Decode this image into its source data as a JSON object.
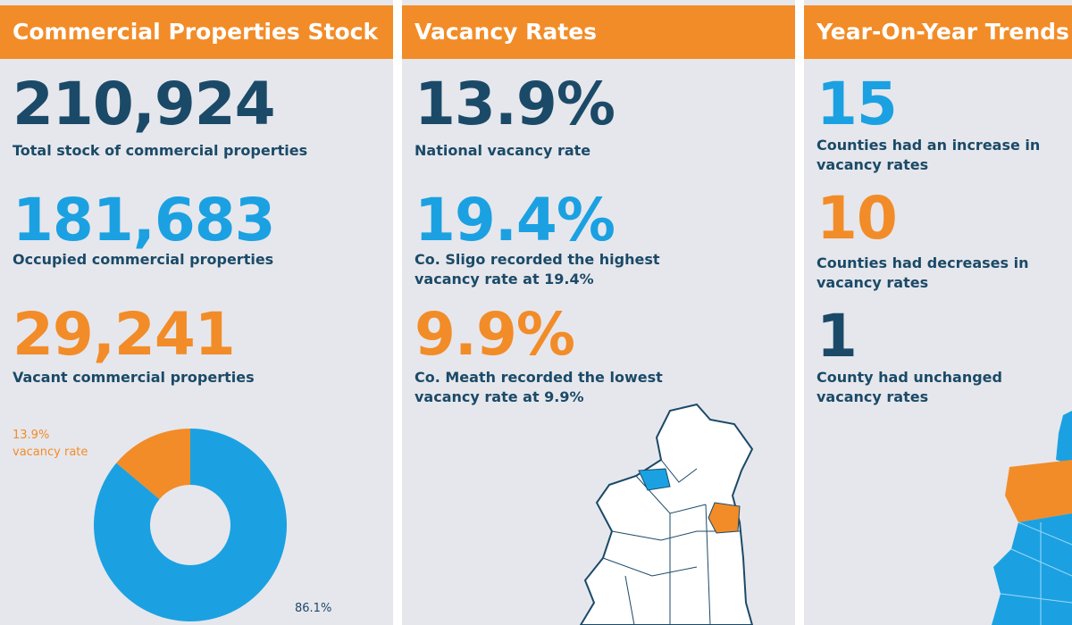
{
  "colors": {
    "orange": "#f28c28",
    "blue": "#1ba1e2",
    "navy": "#1b4a68",
    "background": "#e6e7ec"
  },
  "stock": {
    "title": "Commercial Properties Stock",
    "total": {
      "value": "210,924",
      "label": "Total stock of commercial properties"
    },
    "occupied": {
      "value": "181,683",
      "label": "Occupied commercial properties"
    },
    "vacant": {
      "value": "29,241",
      "label": "Vacant commercial properties"
    }
  },
  "chart_data": {
    "type": "pie",
    "donut": true,
    "slices": [
      {
        "label": "13.9% vacancy rate",
        "value": 13.9,
        "color": "#f28c28"
      },
      {
        "label": "86.1%",
        "value": 86.1,
        "color": "#1ba1e2"
      }
    ]
  },
  "vacancy": {
    "title": "Vacancy Rates",
    "national": {
      "value": "13.9%",
      "label": "National vacancy rate"
    },
    "highest": {
      "value": "19.4%",
      "label": "Co. Sligo recorded the highest vacancy rate at 19.4%"
    },
    "lowest": {
      "value": "9.9%",
      "label": "Co. Meath recorded the lowest vacancy rate at 9.9%"
    }
  },
  "trends": {
    "title": "Year-On-Year Trends",
    "increase": {
      "value": "15",
      "label": "Counties had an increase in vacancy rates"
    },
    "decrease": {
      "value": "10",
      "label": "Counties had decreases in vacancy rates"
    },
    "unchanged": {
      "value": "1",
      "label": "County had unchanged vacancy rates"
    }
  }
}
